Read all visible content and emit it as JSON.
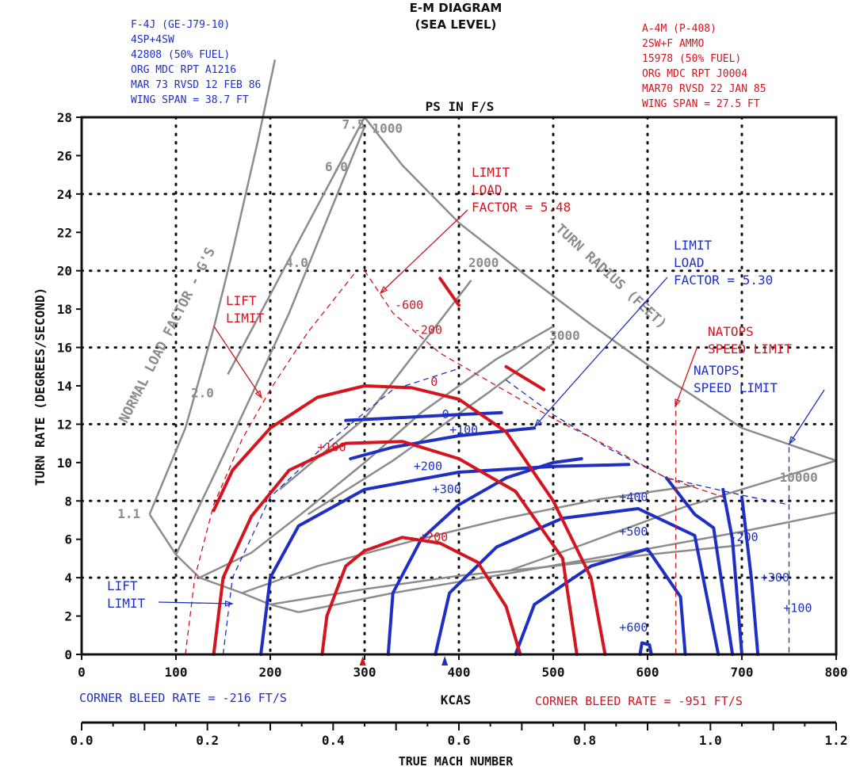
{
  "header": {
    "title_line1": "E-M DIAGRAM",
    "title_line2": "(SEA LEVEL)",
    "left_aircraft": [
      "F-4J (GE-J79-10)",
      "4SP+4SW",
      "42808 (50% FUEL)",
      "ORG MDC RPT A1216",
      "MAR 73 RVSD 12 FEB 86",
      "WING SPAN = 38.7 FT"
    ],
    "right_aircraft": [
      "A-4M (P-408)",
      "2SW+F AMMO",
      "15978 (50% FUEL)",
      "ORG MDC RPT J0004",
      "MAR70 RVSD 22 JAN 85",
      "WING SPAN = 27.5 FT"
    ],
    "colors": {
      "f4j": "#1f2fc4",
      "a4m": "#d4141e",
      "grid_lines": "#8c8c8c",
      "axes": "#111111"
    }
  },
  "footer": {
    "corner_blue": "CORNER BLEED RATE = -216 FT/S",
    "corner_red": "CORNER BLEED RATE = -951 FT/S"
  },
  "chart_data": {
    "type": "line",
    "title": "E-M DIAGRAM",
    "subtitle": "(SEA LEVEL)",
    "ps_label": "PS IN F/S",
    "xlabel": "KCAS",
    "ylabel": "TURN RATE (DEGREES/SECOND)",
    "secondary_xlabel": "TRUE MACH NUMBER",
    "xlim": [
      0,
      800
    ],
    "ylim": [
      0,
      28
    ],
    "xticks": [
      "0",
      "100",
      "200",
      "300",
      "400",
      "500",
      "600",
      "700",
      "800"
    ],
    "yticks": [
      "0",
      "2",
      "4",
      "6",
      "8",
      "10",
      "12",
      "14",
      "16",
      "18",
      "20",
      "22",
      "24",
      "26",
      "28"
    ],
    "mach_ticks": [
      {
        "value": 0.0,
        "label": "0.0"
      },
      {
        "value": 0.2,
        "label": "0.2"
      },
      {
        "value": 0.4,
        "label": "0.4"
      },
      {
        "value": 0.6,
        "label": "0.6"
      },
      {
        "value": 0.8,
        "label": "0.8"
      },
      {
        "value": 1.0,
        "label": "1.0"
      },
      {
        "value": 1.2,
        "label": "1.2"
      }
    ],
    "grid": "dotted",
    "load_factor_title": "NORMAL LOAD FACTOR - G'S",
    "turn_radius_title": "TURN RADIUS (FEET)",
    "load_factor_lines": [
      {
        "label": "1.1",
        "points": [
          [
            72,
            7.3
          ],
          [
            110,
            11.8
          ],
          [
            140,
            17.0
          ],
          [
            160,
            21.0
          ],
          [
            187,
            26.8
          ],
          [
            205,
            31.0
          ]
        ]
      },
      {
        "label": "2.0",
        "points": [
          [
            100,
            5.2
          ],
          [
            140,
            9.3
          ],
          [
            180,
            13.5
          ],
          [
            220,
            17.8
          ],
          [
            300,
            27.5
          ]
        ]
      },
      {
        "label": "4.0",
        "points": [
          [
            125,
            4.0
          ],
          [
            180,
            5.3
          ],
          [
            240,
            7.6
          ],
          [
            300,
            10.0
          ],
          [
            360,
            12.6
          ],
          [
            440,
            15.4
          ],
          [
            500,
            17.1
          ]
        ]
      },
      {
        "label": "6.0",
        "points": [
          [
            170,
            3.2
          ],
          [
            250,
            4.6
          ],
          [
            350,
            5.9
          ],
          [
            450,
            7.1
          ],
          [
            550,
            8.1
          ],
          [
            650,
            8.8
          ]
        ]
      },
      {
        "label": "7.5",
        "points": [
          [
            200,
            2.6
          ],
          [
            300,
            3.4
          ],
          [
            400,
            4.1
          ],
          [
            500,
            4.6
          ],
          [
            600,
            5.2
          ],
          [
            700,
            5.7
          ]
        ]
      }
    ],
    "turn_radius_lines": [
      {
        "label": "1000",
        "points": [
          [
            300,
            28.0
          ],
          [
            155,
            14.6
          ]
        ]
      },
      {
        "label": "2000",
        "points": [
          [
            413,
            19.5
          ],
          [
            300,
            12.3
          ],
          [
            210,
            8.6
          ]
        ]
      },
      {
        "label": "3000",
        "points": [
          [
            500,
            16.2
          ],
          [
            430,
            13.6
          ],
          [
            330,
            10.1
          ],
          [
            240,
            7.3
          ]
        ]
      },
      {
        "label": "10000",
        "points": [
          [
            800,
            10.1
          ],
          [
            640,
            7.7
          ],
          [
            530,
            5.7
          ],
          [
            455,
            4.4
          ]
        ]
      }
    ],
    "envelope_upper": [
      [
        300,
        28.0
      ],
      [
        340,
        25.5
      ],
      [
        400,
        22.5
      ],
      [
        470,
        19.8
      ],
      [
        540,
        17.2
      ],
      [
        620,
        14.4
      ],
      [
        700,
        11.8
      ],
      [
        800,
        10.1
      ]
    ],
    "envelope_lower": [
      [
        230,
        2.2
      ],
      [
        330,
        3.2
      ],
      [
        450,
        4.2
      ],
      [
        600,
        5.5
      ],
      [
        700,
        6.4
      ],
      [
        800,
        7.4
      ]
    ],
    "load_factor_label_positions": [
      {
        "label": "7.5",
        "at": [
          276,
          27.4
        ]
      },
      {
        "label": "6.0",
        "at": [
          258,
          25.2
        ]
      },
      {
        "label": "4.0",
        "at": [
          216,
          20.2
        ]
      },
      {
        "label": "2.0",
        "at": [
          116,
          13.4
        ]
      },
      {
        "label": "1.1",
        "at": [
          38,
          7.1
        ]
      }
    ],
    "turn_radius_label_positions": [
      {
        "label": "1000",
        "at": [
          308,
          27.2
        ]
      },
      {
        "label": "2000",
        "at": [
          410,
          20.2
        ]
      },
      {
        "label": "3000",
        "at": [
          496,
          16.4
        ]
      },
      {
        "label": "10000",
        "at": [
          740,
          9.0
        ]
      }
    ],
    "series": [
      {
        "name": "F-4J (GE-J79-10)",
        "color": "#1f2fc4",
        "ps_contours": [
          {
            "label": "0",
            "points": [
              [
                280,
                12.2
              ],
              [
                320,
                12.3
              ],
              [
                400,
                12.5
              ],
              [
                445,
                12.6
              ]
            ],
            "label_at": [
              382,
              12.3
            ]
          },
          {
            "label": "+100",
            "points": [
              [
                285,
                10.2
              ],
              [
                330,
                10.8
              ],
              [
                400,
                11.4
              ],
              [
                480,
                11.8
              ]
            ],
            "label_at": [
              390,
              11.5
            ]
          },
          {
            "label": "+200",
            "points": [
              [
                325,
                0
              ],
              [
                330,
                3.2
              ],
              [
                360,
                6.0
              ],
              [
                400,
                7.8
              ],
              [
                450,
                9.2
              ],
              [
                500,
                10.0
              ],
              [
                530,
                10.2
              ]
            ],
            "label_at": [
              352,
              9.6
            ]
          },
          {
            "label": "+300",
            "points": [
              [
                190,
                0
              ],
              [
                200,
                4.0
              ],
              [
                230,
                6.7
              ],
              [
                300,
                8.6
              ],
              [
                400,
                9.5
              ],
              [
                500,
                9.8
              ],
              [
                580,
                9.9
              ]
            ],
            "label_at": [
              372,
              8.4
            ]
          },
          {
            "label": "+400",
            "points": [
              [
                375,
                0
              ],
              [
                390,
                3.2
              ],
              [
                440,
                5.6
              ],
              [
                510,
                7.1
              ],
              [
                590,
                7.6
              ],
              [
                650,
                6.2
              ],
              [
                675,
                0
              ]
            ],
            "label_at": [
              570,
              8.0
            ]
          },
          {
            "label": "+500",
            "points": [
              [
                460,
                0
              ],
              [
                480,
                2.6
              ],
              [
                540,
                4.6
              ],
              [
                600,
                5.5
              ],
              [
                635,
                3.0
              ],
              [
                640,
                0
              ]
            ],
            "label_at": [
              570,
              6.2
            ]
          },
          {
            "label": "+600",
            "points": [
              [
                592,
                0
              ],
              [
                594,
                0.6
              ],
              [
                602,
                0.5
              ],
              [
                604,
                0
              ]
            ],
            "label_at": [
              570,
              1.2
            ]
          },
          {
            "label": "-200",
            "points": [
              [
                620,
                9.2
              ],
              [
                650,
                7.3
              ],
              [
                670,
                6.6
              ],
              [
                690,
                0
              ]
            ],
            "label_at": [
              687,
              5.9
            ]
          },
          {
            "label": "+300",
            "points": [
              [
                680,
                8.6
              ],
              [
                690,
                6.0
              ],
              [
                700,
                0
              ]
            ],
            "label_at": [
              720,
              3.8
            ]
          },
          {
            "label": "+100",
            "points": [
              [
                700,
                8.2
              ],
              [
                710,
                4.0
              ],
              [
                717,
                0
              ]
            ],
            "label_at": [
              744,
              2.2
            ]
          }
        ],
        "lift_limit_label": "LIFT LIMIT",
        "limit_load_label": "LIMIT LOAD FACTOR = 5.30",
        "natops_label": "NATOPS SPEED LIMIT",
        "natops_kcas": 750,
        "corner_kcas": 385,
        "lift_limit_dashed": [
          [
            150,
            0
          ],
          [
            160,
            4.0
          ],
          [
            200,
            8.2
          ],
          [
            260,
            11.0
          ],
          [
            330,
            13.8
          ],
          [
            400,
            14.9
          ]
        ],
        "limit_load_dashed": [
          [
            450,
            14.3
          ],
          [
            500,
            12.5
          ],
          [
            560,
            10.7
          ],
          [
            620,
            9.2
          ],
          [
            700,
            8.3
          ],
          [
            750,
            7.8
          ]
        ]
      },
      {
        "name": "A-4M (P-408)",
        "color": "#d4141e",
        "ps_contours": [
          {
            "label": "0",
            "points": [
              [
                140,
                7.5
              ],
              [
                160,
                9.6
              ],
              [
                200,
                11.8
              ],
              [
                250,
                13.4
              ],
              [
                300,
                14.0
              ],
              [
                350,
                13.9
              ],
              [
                400,
                13.3
              ],
              [
                450,
                11.6
              ],
              [
                500,
                8.0
              ],
              [
                540,
                4.0
              ],
              [
                555,
                0
              ]
            ],
            "label_at": [
              370,
              14.0
            ]
          },
          {
            "label": "+100",
            "points": [
              [
                140,
                0
              ],
              [
                150,
                4.0
              ],
              [
                180,
                7.2
              ],
              [
                220,
                9.6
              ],
              [
                280,
                11.0
              ],
              [
                340,
                11.1
              ],
              [
                400,
                10.2
              ],
              [
                460,
                8.5
              ],
              [
                510,
                5.0
              ],
              [
                525,
                0
              ]
            ],
            "label_at": [
              250,
              10.6
            ]
          },
          {
            "label": "+200",
            "points": [
              [
                255,
                0
              ],
              [
                260,
                2.0
              ],
              [
                280,
                4.6
              ],
              [
                300,
                5.4
              ],
              [
                340,
                6.1
              ],
              [
                380,
                5.8
              ],
              [
                420,
                4.8
              ],
              [
                450,
                2.5
              ],
              [
                465,
                0
              ]
            ],
            "label_at": [
              358,
              5.9
            ]
          },
          {
            "label": "-200",
            "points": [
              [
                450,
                15.0
              ],
              [
                490,
                13.8
              ]
            ],
            "label_at": [
              352,
              16.7
            ]
          },
          {
            "label": "-600",
            "points": [
              [
                380,
                19.6
              ],
              [
                400,
                18.2
              ]
            ],
            "label_at": [
              332,
              18.0
            ]
          }
        ],
        "lift_limit_label": "LIFT LIMIT",
        "limit_load_label": "LIMIT LOAD FACTOR = 5.48",
        "natops_label": "NATOPS SPEED LIMIT",
        "natops_kcas": 630,
        "corner_kcas": 298,
        "lift_limit_dashed": [
          [
            110,
            0
          ],
          [
            120,
            4.0
          ],
          [
            140,
            7.8
          ],
          [
            170,
            11.2
          ],
          [
            200,
            13.8
          ],
          [
            240,
            16.8
          ],
          [
            290,
            19.9
          ]
        ],
        "limit_load_dashed": [
          [
            300,
            20.0
          ],
          [
            330,
            17.8
          ],
          [
            380,
            15.7
          ],
          [
            440,
            14.0
          ],
          [
            500,
            12.3
          ],
          [
            560,
            10.8
          ],
          [
            620,
            9.2
          ],
          [
            680,
            8.2
          ]
        ]
      }
    ]
  }
}
